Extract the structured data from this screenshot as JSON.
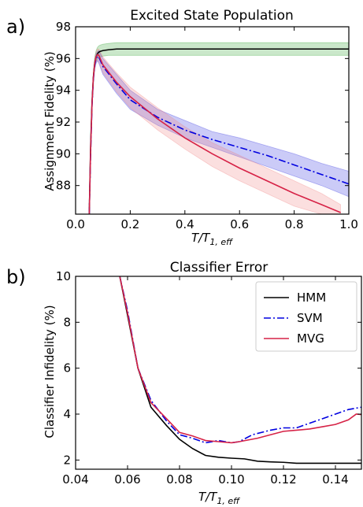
{
  "chart_data": [
    {
      "panel_label": "a)",
      "type": "line",
      "title": "Excited State Population",
      "xlabel": "T/T",
      "xlabel_sub": "1, eff",
      "ylabel": "Assignment Fidelity (%)",
      "xlim": [
        0.0,
        1.0
      ],
      "ylim": [
        86.2,
        98.0
      ],
      "xticks": [
        0.0,
        0.2,
        0.4,
        0.6,
        0.8,
        1.0
      ],
      "xtick_labels": [
        "0.0",
        "0.2",
        "0.4",
        "0.6",
        "0.8",
        "1.0"
      ],
      "yticks": [
        88,
        90,
        92,
        94,
        96,
        98
      ],
      "ytick_labels": [
        "88",
        "90",
        "92",
        "94",
        "96",
        "98"
      ],
      "grid": false,
      "legend": "none",
      "series": [
        {
          "color": "#000000",
          "band_color": "#2ca02c",
          "dash": "solid",
          "x": [
            0.05,
            0.055,
            0.06,
            0.065,
            0.07,
            0.075,
            0.08,
            0.085,
            0.09,
            0.1,
            0.12,
            0.15,
            0.2,
            0.3,
            0.5,
            0.7,
            0.9,
            1.0
          ],
          "y": [
            86.2,
            90.5,
            93.2,
            94.8,
            95.7,
            96.1,
            96.3,
            96.4,
            96.45,
            96.5,
            96.55,
            96.6,
            96.6,
            96.6,
            96.6,
            96.6,
            96.6,
            96.6
          ],
          "lower": [
            86.2,
            90.2,
            92.9,
            94.5,
            95.4,
            95.8,
            96.0,
            96.05,
            96.1,
            96.15,
            96.2,
            96.2,
            96.2,
            96.2,
            96.2,
            96.2,
            96.2,
            96.2
          ],
          "upper": [
            86.2,
            90.9,
            93.6,
            95.2,
            96.1,
            96.5,
            96.7,
            96.8,
            96.85,
            96.9,
            96.95,
            97.0,
            97.0,
            97.0,
            97.0,
            97.0,
            97.0,
            97.0
          ]
        },
        {
          "color": "#0000e0",
          "band_color": "#3030e0",
          "dash": "dashdot",
          "x": [
            0.05,
            0.055,
            0.06,
            0.065,
            0.07,
            0.075,
            0.08,
            0.085,
            0.1,
            0.15,
            0.2,
            0.3,
            0.4,
            0.5,
            0.6,
            0.7,
            0.8,
            0.9,
            1.0
          ],
          "y": [
            86.2,
            90.0,
            93.0,
            94.7,
            95.6,
            96.0,
            96.15,
            96.1,
            95.5,
            94.4,
            93.4,
            92.3,
            91.5,
            90.9,
            90.4,
            89.9,
            89.3,
            88.7,
            88.1
          ],
          "lower": [
            86.2,
            89.7,
            92.7,
            94.4,
            95.3,
            95.7,
            95.85,
            95.7,
            95.0,
            93.8,
            92.8,
            91.8,
            91.0,
            90.4,
            89.8,
            89.2,
            88.6,
            88.0,
            87.3
          ],
          "upper": [
            86.2,
            90.3,
            93.3,
            95.0,
            95.9,
            96.3,
            96.45,
            96.5,
            96.0,
            95.0,
            94.0,
            92.8,
            92.1,
            91.4,
            91.0,
            90.5,
            90.0,
            89.4,
            88.9
          ]
        },
        {
          "color": "#d62246",
          "band_color": "#f08080",
          "dash": "solid",
          "x": [
            0.05,
            0.055,
            0.06,
            0.065,
            0.07,
            0.075,
            0.08,
            0.085,
            0.1,
            0.15,
            0.2,
            0.3,
            0.4,
            0.5,
            0.6,
            0.7,
            0.8,
            0.9,
            0.97
          ],
          "y": [
            86.2,
            90.2,
            93.1,
            94.8,
            95.7,
            96.1,
            96.25,
            96.2,
            95.6,
            94.5,
            93.6,
            92.2,
            91.0,
            90.0,
            89.1,
            88.3,
            87.5,
            86.8,
            86.3
          ],
          "lower": [
            86.2,
            89.9,
            92.8,
            94.5,
            95.4,
            95.8,
            95.9,
            95.8,
            95.1,
            93.9,
            92.9,
            91.5,
            90.3,
            89.2,
            88.3,
            87.5,
            86.7,
            86.2,
            86.2
          ],
          "upper": [
            86.2,
            90.5,
            93.4,
            95.1,
            96.0,
            96.4,
            96.6,
            96.6,
            96.1,
            95.1,
            94.2,
            92.9,
            91.7,
            90.7,
            89.9,
            89.1,
            88.3,
            87.5,
            86.8
          ]
        }
      ]
    },
    {
      "panel_label": "b)",
      "type": "line",
      "title": "Classifier Error",
      "xlabel": "T/T",
      "xlabel_sub": "1, eff",
      "ylabel": "Classifier Infidelity (%)",
      "xlim": [
        0.04,
        0.15
      ],
      "ylim": [
        1.6,
        10.0
      ],
      "xticks": [
        0.04,
        0.06,
        0.08,
        0.1,
        0.12,
        0.14
      ],
      "xtick_labels": [
        "0.04",
        "0.06",
        "0.08",
        "0.10",
        "0.12",
        "0.14"
      ],
      "yticks": [
        2,
        4,
        6,
        8,
        10
      ],
      "ytick_labels": [
        "2",
        "4",
        "6",
        "8",
        "10"
      ],
      "grid": false,
      "legend": "top-right",
      "series": [
        {
          "name": "HMM",
          "color": "#000000",
          "dash": "solid",
          "x": [
            0.057,
            0.06,
            0.064,
            0.069,
            0.075,
            0.08,
            0.085,
            0.09,
            0.095,
            0.1,
            0.105,
            0.11,
            0.115,
            0.12,
            0.125,
            0.13,
            0.14,
            0.15
          ],
          "y": [
            10.0,
            8.3,
            6.0,
            4.3,
            3.5,
            2.9,
            2.5,
            2.2,
            2.12,
            2.08,
            2.05,
            1.95,
            1.92,
            1.9,
            1.86,
            1.86,
            1.86,
            1.86
          ]
        },
        {
          "name": "SVM",
          "color": "#0000e0",
          "dash": "dashdot",
          "x": [
            0.057,
            0.06,
            0.064,
            0.069,
            0.075,
            0.08,
            0.085,
            0.09,
            0.095,
            0.1,
            0.103,
            0.108,
            0.115,
            0.12,
            0.125,
            0.13,
            0.135,
            0.14,
            0.145,
            0.15
          ],
          "y": [
            10.0,
            8.5,
            6.0,
            4.6,
            3.7,
            3.1,
            2.95,
            2.75,
            2.85,
            2.75,
            2.8,
            3.1,
            3.3,
            3.4,
            3.4,
            3.6,
            3.8,
            4.0,
            4.2,
            4.3
          ]
        },
        {
          "name": "MVG",
          "color": "#d62246",
          "dash": "solid",
          "x": [
            0.057,
            0.06,
            0.064,
            0.069,
            0.075,
            0.08,
            0.085,
            0.09,
            0.095,
            0.1,
            0.103,
            0.11,
            0.115,
            0.12,
            0.125,
            0.13,
            0.135,
            0.14,
            0.145,
            0.148,
            0.15
          ],
          "y": [
            10.0,
            8.4,
            6.0,
            4.5,
            3.8,
            3.2,
            3.05,
            2.85,
            2.8,
            2.75,
            2.8,
            2.95,
            3.1,
            3.25,
            3.3,
            3.35,
            3.45,
            3.55,
            3.75,
            4.0,
            3.98
          ]
        }
      ]
    }
  ]
}
